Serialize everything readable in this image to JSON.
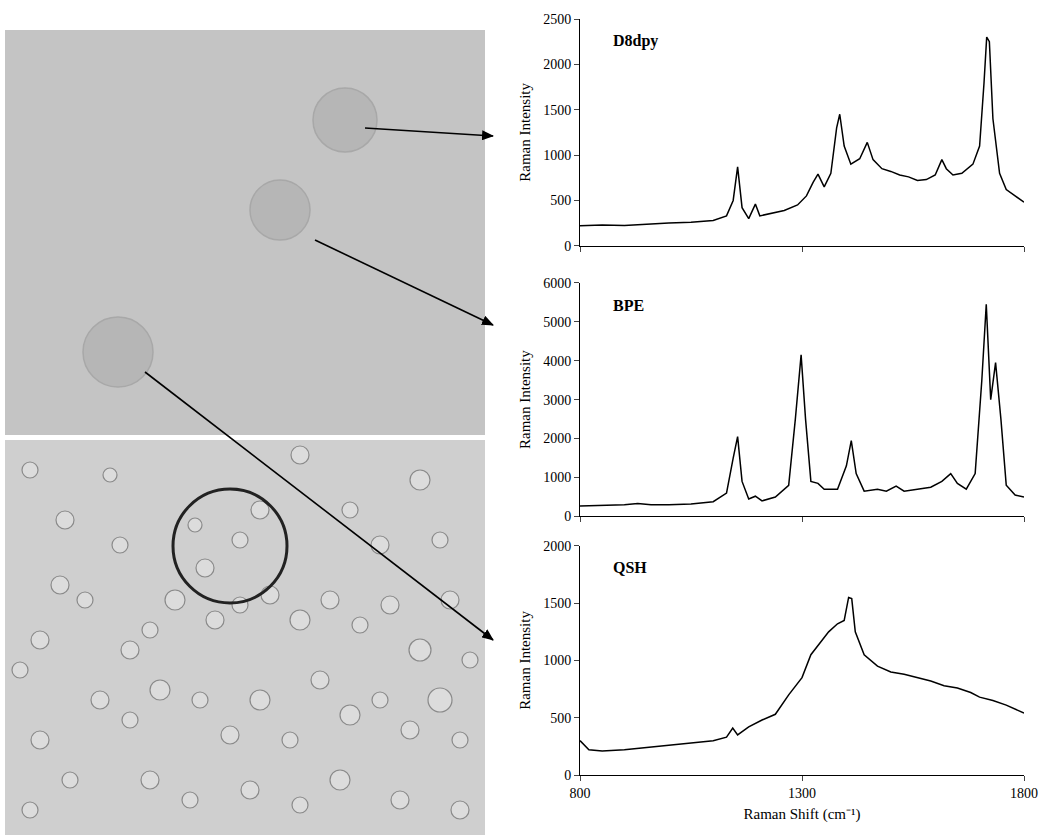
{
  "chart_data": [
    {
      "type": "line",
      "title": "D8dpy",
      "color": "#000000",
      "grid": false,
      "tick_labels": "y",
      "y_label": "Raman Intensity",
      "xlim": [
        800,
        1800
      ],
      "xticks": [
        800,
        1300,
        1800
      ],
      "ylim": [
        0,
        2500
      ],
      "yticks": [
        0,
        500,
        1000,
        1500,
        2000,
        2500
      ],
      "x": [
        800,
        850,
        900,
        950,
        1000,
        1050,
        1100,
        1130,
        1145,
        1155,
        1165,
        1180,
        1195,
        1205,
        1230,
        1260,
        1290,
        1310,
        1325,
        1336,
        1350,
        1365,
        1378,
        1385,
        1395,
        1410,
        1430,
        1447,
        1460,
        1480,
        1500,
        1520,
        1540,
        1560,
        1580,
        1600,
        1615,
        1625,
        1640,
        1660,
        1685,
        1700,
        1710,
        1716,
        1722,
        1730,
        1745,
        1760,
        1780,
        1800
      ],
      "values": [
        220,
        230,
        225,
        240,
        250,
        260,
        280,
        330,
        500,
        870,
        420,
        300,
        460,
        330,
        360,
        390,
        450,
        550,
        700,
        790,
        650,
        800,
        1300,
        1450,
        1100,
        900,
        960,
        1140,
        950,
        850,
        820,
        780,
        760,
        720,
        730,
        780,
        950,
        850,
        780,
        800,
        900,
        1100,
        1800,
        2300,
        2250,
        1400,
        800,
        620,
        550,
        480
      ]
    },
    {
      "type": "line",
      "title": "BPE",
      "color": "#000000",
      "grid": false,
      "tick_labels": "y",
      "y_label": "Raman Intensity",
      "xlim": [
        800,
        1800
      ],
      "xticks": [
        800,
        1300,
        1800
      ],
      "ylim": [
        0,
        6000
      ],
      "yticks": [
        0,
        1000,
        2000,
        3000,
        4000,
        5000,
        6000
      ],
      "x": [
        800,
        850,
        900,
        930,
        960,
        1000,
        1050,
        1100,
        1130,
        1145,
        1155,
        1165,
        1180,
        1195,
        1210,
        1240,
        1270,
        1285,
        1298,
        1308,
        1320,
        1336,
        1350,
        1380,
        1400,
        1411,
        1422,
        1440,
        1470,
        1490,
        1512,
        1530,
        1560,
        1590,
        1615,
        1635,
        1650,
        1670,
        1690,
        1705,
        1715,
        1725,
        1736,
        1748,
        1760,
        1780,
        1800
      ],
      "values": [
        270,
        280,
        300,
        330,
        300,
        300,
        320,
        380,
        600,
        1500,
        2050,
        900,
        450,
        520,
        400,
        500,
        800,
        2500,
        4150,
        2500,
        900,
        850,
        700,
        700,
        1300,
        1950,
        1100,
        650,
        700,
        650,
        780,
        650,
        700,
        750,
        900,
        1100,
        850,
        700,
        1100,
        3500,
        5450,
        3000,
        3950,
        2500,
        800,
        550,
        500
      ]
    },
    {
      "type": "line",
      "title": "QSH",
      "color": "#000000",
      "grid": false,
      "x_label": "Raman Shift (cm⁻¹)",
      "y_label": "Raman Intensity",
      "xlim": [
        800,
        1800
      ],
      "xticks": [
        800,
        1300,
        1800
      ],
      "ylim": [
        0,
        2000
      ],
      "yticks": [
        0,
        500,
        1000,
        1500,
        2000
      ],
      "x": [
        800,
        820,
        850,
        900,
        950,
        1000,
        1050,
        1100,
        1130,
        1144,
        1155,
        1180,
        1210,
        1240,
        1270,
        1300,
        1320,
        1340,
        1360,
        1380,
        1395,
        1405,
        1412,
        1420,
        1440,
        1470,
        1500,
        1530,
        1560,
        1590,
        1620,
        1650,
        1680,
        1700,
        1730,
        1760,
        1800
      ],
      "values": [
        300,
        220,
        210,
        220,
        240,
        260,
        280,
        300,
        330,
        410,
        350,
        420,
        480,
        530,
        700,
        850,
        1050,
        1150,
        1250,
        1320,
        1350,
        1550,
        1540,
        1250,
        1050,
        950,
        900,
        880,
        850,
        820,
        780,
        760,
        720,
        680,
        650,
        610,
        540
      ]
    }
  ]
}
